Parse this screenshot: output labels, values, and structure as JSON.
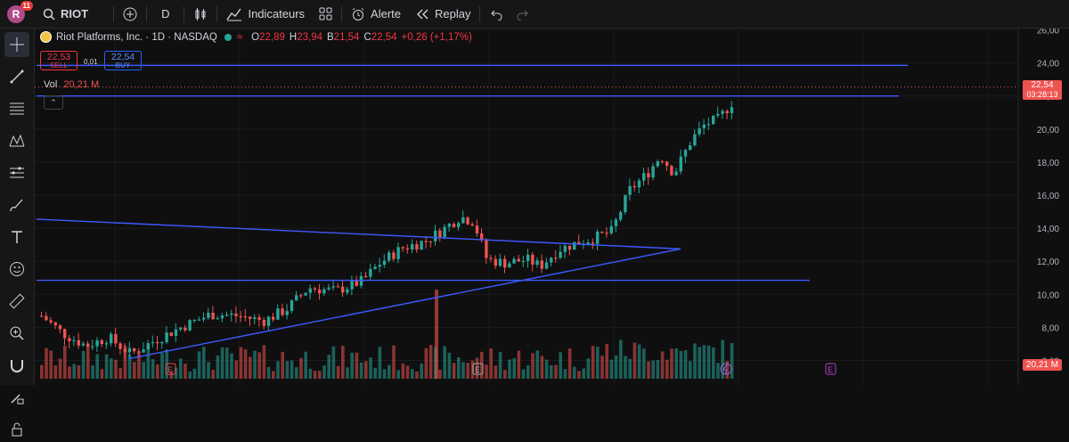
{
  "topbar": {
    "avatar_letter": "R",
    "notifications": "11",
    "symbol": "RIOT",
    "interval": "D",
    "indicators_label": "Indicateurs",
    "alert_label": "Alerte",
    "replay_label": "Replay"
  },
  "legend": {
    "title": "Riot Platforms, Inc. · 1D · NASDAQ",
    "open_key": "O",
    "open": "22,89",
    "high_key": "H",
    "high": "23,94",
    "low_key": "B",
    "low": "21,54",
    "close_key": "C",
    "close": "22,54",
    "change": "+0,26 (+1,17%)"
  },
  "trade": {
    "sell_price": "22,53",
    "sell_label": "SELL",
    "buy_price": "22,54",
    "buy_label": "BUY",
    "spread": "0,01"
  },
  "volume": {
    "label": "Vol",
    "value": "20,21 M",
    "axis_value": "20,21 M"
  },
  "price_axis": {
    "ticks": [
      "26,00",
      "24,00",
      "22,00",
      "20,00",
      "18,00",
      "16,00",
      "14,00",
      "12,00",
      "10,00",
      "8,00",
      "6,00"
    ],
    "last_price": "22,54",
    "countdown": "03:28:13"
  },
  "sidebar": {
    "tools": [
      "crosshair-icon",
      "trendline-icon",
      "fib-icon",
      "pattern-icon",
      "measure-lines-icon",
      "brush-icon",
      "text-icon",
      "emoji-icon",
      "ruler-icon",
      "zoom-icon",
      "magnet-icon",
      "pencil-lock-icon",
      "lock-icon"
    ]
  },
  "markers": {
    "earnings_label": "E"
  },
  "colors": {
    "up": "#26a69a",
    "down": "#ef5350",
    "lines": "#3d5afe",
    "accent": "#2962ff"
  }
}
